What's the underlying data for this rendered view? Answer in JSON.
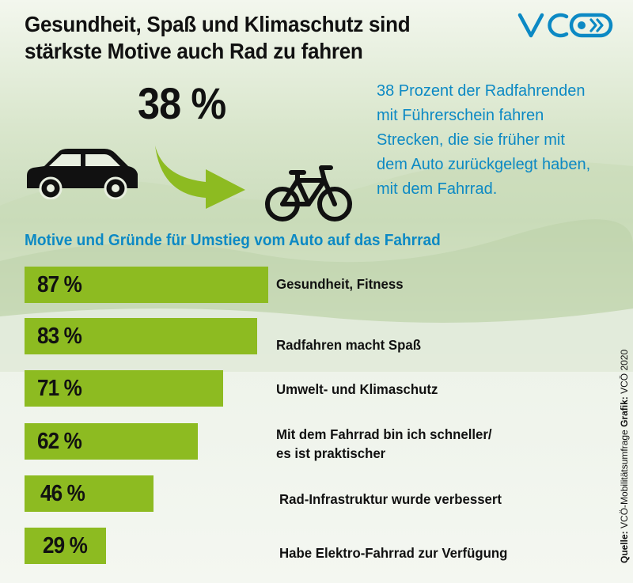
{
  "title_line1": "Gesundheit, Spaß und Klimaschutz sind",
  "title_line2": "stärkste Motive auch Rad zu fahren",
  "logo_text": "VCÖ",
  "big_percent": "38 %",
  "note_lines": [
    "38 Prozent der Radfahrenden",
    "mit Führerschein fahren",
    "Strecken, die sie früher mit",
    "dem Auto zurückgelegt haben,",
    "mit dem Fahrrad."
  ],
  "icons": {
    "car": "car-icon",
    "arrow": "arrow-icon",
    "bike": "bicycle-icon"
  },
  "colors": {
    "bar": "#8dbb21",
    "accent_blue": "#0c89c4",
    "text": "#111111"
  },
  "source": {
    "label": "Quelle:",
    "text": "VCÖ-Mobilitätsumfrage",
    "graphic_label": "Grafik:",
    "graphic_text": "VCÖ 2020"
  },
  "chart_data": {
    "type": "bar",
    "orientation": "horizontal",
    "title": "Motive und Gründe für Umstieg vom Auto auf das Fahrrad",
    "unit": "%",
    "categories": [
      "Gesundheit, Fitness",
      "Radfahren macht Spaß",
      "Umwelt- und Klimaschutz",
      "Mit dem Fahrrad bin ich schneller/\nes ist praktischer",
      "Rad-Infrastruktur wurde verbessert",
      "Habe Elektro-Fahrrad zur Verfügung"
    ],
    "values": [
      87,
      83,
      71,
      62,
      46,
      29
    ],
    "value_labels": [
      "87 %",
      "83 %",
      "71 %",
      "62 %",
      "46 %",
      "29 %"
    ]
  }
}
